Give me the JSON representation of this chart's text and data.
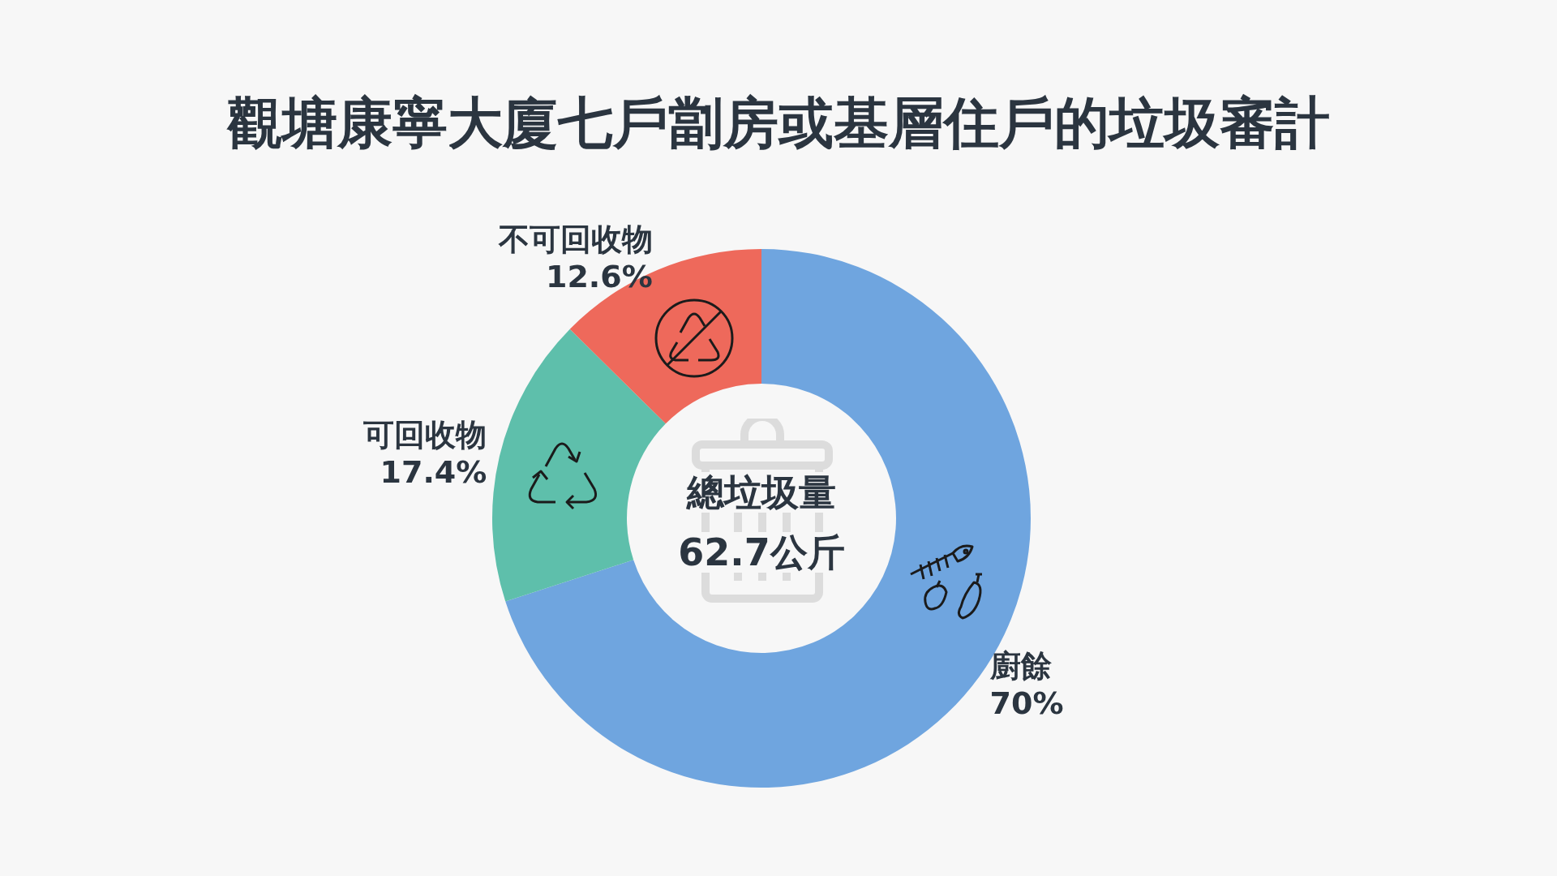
{
  "chart_data": {
    "type": "donut",
    "title": "觀塘康寧大廈七戶劏房或基層住戶的垃圾審計",
    "categories": [
      "廚餘",
      "可回收物",
      "不可回收物"
    ],
    "values": [
      70,
      17.4,
      12.6
    ],
    "colors": [
      "#6fa5df",
      "#5ebfab",
      "#ee695b"
    ],
    "value_labels": [
      "70%",
      "17.4%",
      "12.6%"
    ],
    "legend": false,
    "annotations": [
      "總垃圾量",
      "62.7公斤"
    ]
  }
}
